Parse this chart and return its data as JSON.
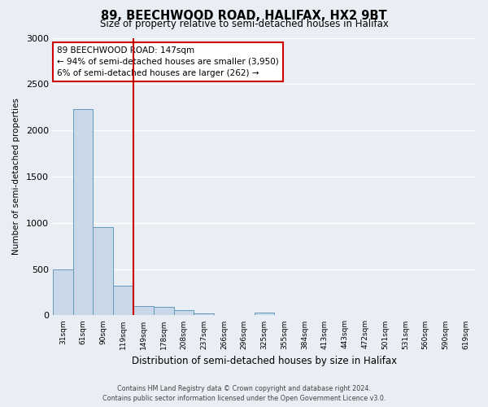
{
  "title": "89, BEECHWOOD ROAD, HALIFAX, HX2 9BT",
  "subtitle": "Size of property relative to semi-detached houses in Halifax",
  "xlabel": "Distribution of semi-detached houses by size in Halifax",
  "ylabel": "Number of semi-detached properties",
  "bin_labels": [
    "31sqm",
    "61sqm",
    "90sqm",
    "119sqm",
    "149sqm",
    "178sqm",
    "208sqm",
    "237sqm",
    "266sqm",
    "296sqm",
    "325sqm",
    "355sqm",
    "384sqm",
    "413sqm",
    "443sqm",
    "472sqm",
    "501sqm",
    "531sqm",
    "560sqm",
    "590sqm",
    "619sqm"
  ],
  "bar_values": [
    500,
    2230,
    950,
    320,
    100,
    90,
    55,
    25,
    0,
    0,
    30,
    0,
    0,
    0,
    0,
    0,
    0,
    0,
    0,
    0,
    0
  ],
  "bar_color": "#c8d8e8",
  "bar_edge_color": "#6699bb",
  "vline_index": 4,
  "vline_color": "#cc0000",
  "annotation_title": "89 BEECHWOOD ROAD: 147sqm",
  "annotation_line2": "← 94% of semi-detached houses are smaller (3,950)",
  "annotation_line3": "6% of semi-detached houses are larger (262) →",
  "annotation_box_facecolor": "#ffffff",
  "annotation_box_edgecolor": "#cc0000",
  "ylim": [
    0,
    3000
  ],
  "yticks": [
    0,
    500,
    1000,
    1500,
    2000,
    2500,
    3000
  ],
  "footer_line1": "Contains HM Land Registry data © Crown copyright and database right 2024.",
  "footer_line2": "Contains public sector information licensed under the Open Government Licence v3.0.",
  "background_color": "#e8eef4",
  "plot_bg_color": "#e8eef4"
}
